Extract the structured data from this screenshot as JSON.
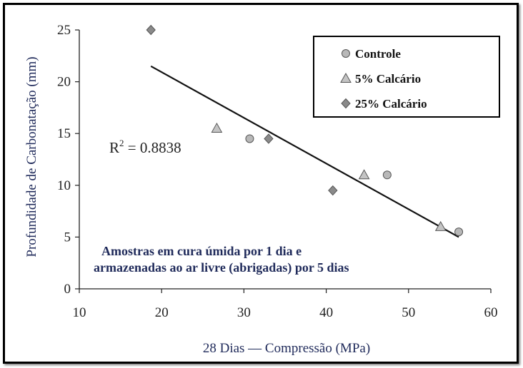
{
  "chart_data": {
    "type": "scatter",
    "xlabel": "28 Dias — Compressão (MPa)",
    "ylabel": "Profundidade de Carbonatação (mm)",
    "xlim": [
      10,
      60
    ],
    "ylim": [
      0,
      25
    ],
    "xticks": [
      10,
      20,
      30,
      40,
      50,
      60
    ],
    "yticks": [
      0,
      5,
      10,
      15,
      20,
      25
    ],
    "series": [
      {
        "name": "Controle",
        "marker": "circle",
        "color": "#b8b8b8",
        "points": [
          [
            30.7,
            14.5
          ],
          [
            47.4,
            11.0
          ],
          [
            56.1,
            5.5
          ]
        ]
      },
      {
        "name": "5% Calcário",
        "marker": "triangle",
        "color": "#c4c4c4",
        "points": [
          [
            26.7,
            15.5
          ],
          [
            44.6,
            11.0
          ],
          [
            53.9,
            6.0
          ]
        ]
      },
      {
        "name": "25% Calcário",
        "marker": "diamond",
        "color": "#8a8a8a",
        "points": [
          [
            18.7,
            25.0
          ],
          [
            33.0,
            14.5
          ],
          [
            40.8,
            9.5
          ]
        ]
      }
    ],
    "trendline": {
      "x": [
        18.7,
        56.1
      ],
      "y": [
        21.5,
        5.0
      ]
    },
    "r2_base": "R",
    "r2_sup": "2",
    "r2_value": " = 0.8838",
    "annotation_line1": "Amostras em cura úmida por 1 dia e",
    "annotation_line2": "armazenadas ao ar livre (abrigadas) por 5 dias",
    "legend_position": "top-right",
    "grid": false
  }
}
